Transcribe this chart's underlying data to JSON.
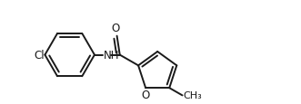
{
  "bg_color": "#ffffff",
  "line_color": "#1a1a1a",
  "line_width": 1.4,
  "font_size": 8.5,
  "figsize": [
    3.31,
    1.16
  ],
  "dpi": 100,
  "xlim": [
    -0.92,
    1.42
  ],
  "ylim": [
    -0.42,
    0.48
  ]
}
